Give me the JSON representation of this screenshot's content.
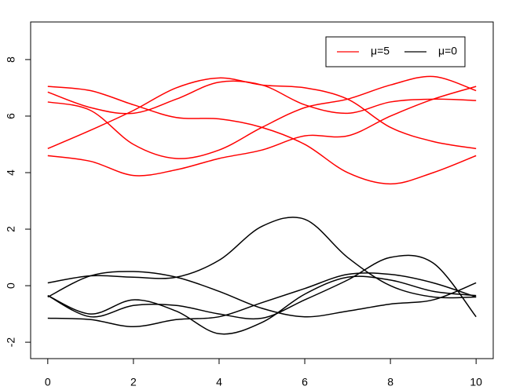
{
  "chart_data": {
    "type": "line",
    "x": [
      0,
      1,
      2,
      3,
      4,
      5,
      6,
      7,
      8,
      9,
      10
    ],
    "series": [
      {
        "color": "#ff0000",
        "values": [
          7.05,
          6.9,
          6.4,
          5.95,
          5.9,
          5.6,
          5.0,
          4.0,
          3.6,
          4.0,
          4.6
        ]
      },
      {
        "color": "#ff0000",
        "values": [
          6.85,
          6.3,
          6.1,
          6.6,
          7.2,
          7.1,
          6.4,
          6.1,
          6.5,
          6.6,
          6.55
        ]
      },
      {
        "color": "#ff0000",
        "values": [
          6.5,
          6.2,
          5.0,
          4.5,
          4.8,
          5.6,
          6.3,
          6.6,
          7.1,
          7.4,
          6.9
        ]
      },
      {
        "color": "#ff0000",
        "values": [
          4.85,
          5.5,
          6.2,
          7.0,
          7.35,
          7.1,
          7.0,
          6.6,
          5.6,
          5.1,
          4.85
        ]
      },
      {
        "color": "#ff0000",
        "values": [
          4.6,
          4.4,
          3.9,
          4.1,
          4.5,
          4.8,
          5.3,
          5.3,
          6.0,
          6.6,
          7.05
        ]
      },
      {
        "color": "#000000",
        "values": [
          0.1,
          0.35,
          0.3,
          0.3,
          0.9,
          2.1,
          2.35,
          1.0,
          0.0,
          -0.4,
          -0.4
        ]
      },
      {
        "color": "#000000",
        "values": [
          -0.35,
          -1.0,
          -0.5,
          -0.9,
          -1.7,
          -1.3,
          -0.3,
          0.3,
          0.2,
          -0.2,
          -0.35
        ]
      },
      {
        "color": "#000000",
        "values": [
          -0.4,
          0.35,
          0.5,
          0.3,
          -0.2,
          -0.8,
          -1.1,
          -0.9,
          -0.65,
          -0.5,
          0.1
        ]
      },
      {
        "color": "#000000",
        "values": [
          -1.15,
          -1.2,
          -1.45,
          -1.2,
          -1.1,
          -0.6,
          -0.1,
          0.4,
          0.4,
          0.1,
          -0.4
        ]
      },
      {
        "color": "#000000",
        "values": [
          -0.35,
          -1.1,
          -0.7,
          -0.7,
          -1.0,
          -1.15,
          -0.5,
          0.2,
          1.0,
          0.8,
          -1.1
        ]
      }
    ],
    "legend": [
      {
        "label": "μ=5",
        "color": "#ff0000"
      },
      {
        "label": "μ=0",
        "color": "#000000"
      }
    ],
    "legend_position": "top-right",
    "xlim": [
      -0.4,
      10.4
    ],
    "ylim": [
      -2.58,
      9.33
    ],
    "xticks": [
      0,
      2,
      4,
      6,
      8,
      10
    ],
    "yticks": [
      -2,
      0,
      2,
      4,
      6,
      8
    ]
  }
}
